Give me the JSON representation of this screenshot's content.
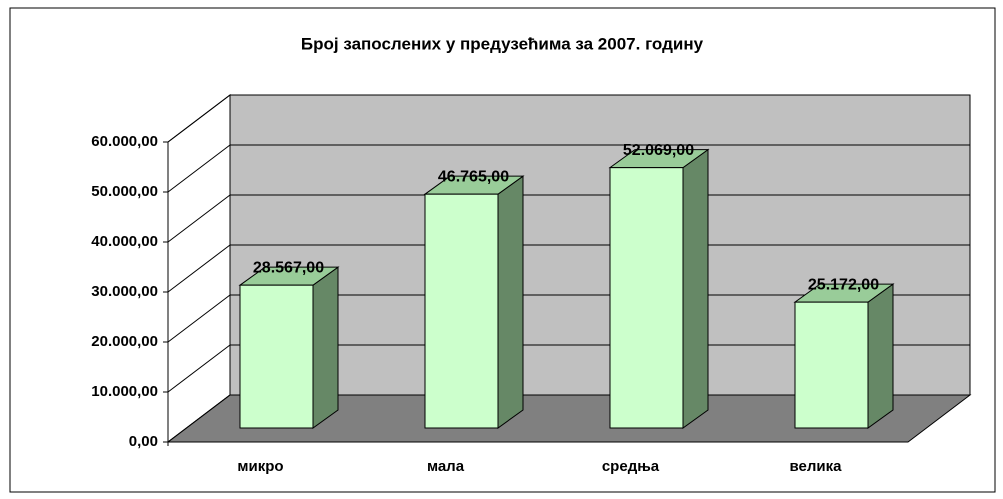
{
  "chart_data": {
    "type": "bar3d",
    "title": "Број запослених у предузећима за 2007. годину",
    "categories": [
      "микро",
      "мала",
      "средња",
      "велика"
    ],
    "values": [
      28567,
      46765,
      52069,
      25172
    ],
    "value_labels": [
      "28.567,00",
      "46.765,00",
      "52.069,00",
      "25.172,00"
    ],
    "color": "#ccffcc",
    "ylim": [
      0,
      60000
    ],
    "yticks": [
      {
        "value": 0,
        "label": "0,00"
      },
      {
        "value": 10000,
        "label": "10.000,00"
      },
      {
        "value": 20000,
        "label": "20.000,00"
      },
      {
        "value": 30000,
        "label": "30.000,00"
      },
      {
        "value": 40000,
        "label": "40.000,00"
      },
      {
        "value": 50000,
        "label": "50.000,00"
      },
      {
        "value": 60000,
        "label": "60.000,00"
      }
    ],
    "grid": true
  }
}
